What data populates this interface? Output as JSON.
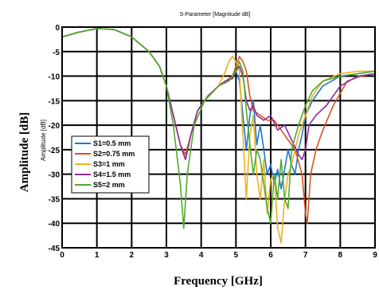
{
  "chart_data": {
    "type": "line",
    "title": "S-Parameter [Magnitude dB]",
    "xlabel": "Frequency [GHz]",
    "ylabel_outer": "Amplitude [dB]",
    "ylabel_inner": "Amplitude [dB]",
    "xlim": [
      0,
      9
    ],
    "ylim": [
      -45,
      0
    ],
    "xticks": [
      "0",
      "1",
      "2",
      "3",
      "4",
      "5",
      "6",
      "7",
      "8",
      "9"
    ],
    "yticks": [
      "0",
      "-5",
      "-10",
      "-15",
      "-20",
      "-25",
      "-30",
      "-35",
      "-40",
      "-45"
    ],
    "grid": true,
    "legend_position": "bottom-left",
    "series": [
      {
        "name": "S1=0.5 mm",
        "color": "#1f77d4",
        "x": [
          0,
          0.5,
          1,
          1.5,
          2,
          2.5,
          2.8,
          3.0,
          3.2,
          3.4,
          3.55,
          3.7,
          3.9,
          4.2,
          4.5,
          4.7,
          4.9,
          5.0,
          5.1,
          5.2,
          5.3,
          5.4,
          5.5,
          5.6,
          5.7,
          5.8,
          5.9,
          6.0,
          6.1,
          6.2,
          6.3,
          6.4,
          6.5,
          6.6,
          6.7,
          6.8,
          6.9,
          7.0,
          7.2,
          7.5,
          8.0,
          8.5,
          9.0
        ],
        "y": [
          -2,
          -1,
          -0.3,
          -0.5,
          -2,
          -5,
          -8,
          -12,
          -18,
          -24,
          -27,
          -22,
          -17,
          -14,
          -12,
          -11,
          -10.5,
          -9,
          -11,
          -18,
          -25,
          -18,
          -15,
          -24,
          -20,
          -25,
          -30,
          -28,
          -32,
          -29,
          -33,
          -29,
          -25,
          -28,
          -30,
          -25,
          -22,
          -18,
          -15,
          -12,
          -10,
          -9.5,
          -9
        ]
      },
      {
        "name": "S2=0.75 mm",
        "color": "#d9541a",
        "x": [
          0,
          0.5,
          1,
          1.5,
          2,
          2.5,
          2.8,
          3.0,
          3.2,
          3.4,
          3.55,
          3.7,
          3.9,
          4.2,
          4.5,
          4.7,
          4.9,
          5.0,
          5.1,
          5.2,
          5.3,
          5.4,
          5.5,
          5.7,
          5.9,
          6.1,
          6.3,
          6.5,
          6.7,
          6.9,
          7.0,
          7.05,
          7.15,
          7.3,
          7.5,
          7.8,
          8.2,
          8.6,
          9.0
        ],
        "y": [
          -2,
          -1,
          -0.3,
          -0.5,
          -2,
          -5,
          -8,
          -12,
          -18,
          -24,
          -26,
          -22,
          -17,
          -14,
          -12,
          -11,
          -10,
          -8,
          -6,
          -7,
          -9,
          -14,
          -17,
          -18,
          -19,
          -19,
          -21,
          -23,
          -25,
          -30,
          -38,
          -40,
          -30,
          -25,
          -21,
          -16,
          -11,
          -10,
          -9.5
        ]
      },
      {
        "name": "S3=1 mm",
        "color": "#edb120",
        "x": [
          0,
          0.5,
          1,
          1.5,
          2,
          2.5,
          2.8,
          3.0,
          3.2,
          3.4,
          3.55,
          3.7,
          3.9,
          4.2,
          4.5,
          4.7,
          4.8,
          4.9,
          5.0,
          5.1,
          5.2,
          5.3,
          5.4,
          5.5,
          5.6,
          5.7,
          5.8,
          5.9,
          6.0,
          6.1,
          6.2,
          6.3,
          6.4,
          6.5,
          6.6,
          6.7,
          6.8,
          7.0,
          7.2,
          7.5,
          8.0,
          8.5,
          9.0
        ],
        "y": [
          -2,
          -1,
          -0.3,
          -0.5,
          -2,
          -5,
          -8,
          -12,
          -18,
          -24,
          -27,
          -22,
          -17,
          -14,
          -12,
          -9,
          -7,
          -6,
          -7,
          -9,
          -22,
          -35,
          -22,
          -18,
          -30,
          -35,
          -27,
          -38,
          -31,
          -30,
          -41,
          -44,
          -35,
          -30,
          -28,
          -25,
          -22,
          -18,
          -14,
          -11,
          -9.5,
          -9,
          -9
        ]
      },
      {
        "name": "S4=1.5 mm",
        "color": "#8e2c9c",
        "x": [
          0,
          0.5,
          1,
          1.5,
          2,
          2.5,
          2.8,
          3.0,
          3.2,
          3.4,
          3.55,
          3.7,
          3.9,
          4.2,
          4.5,
          4.7,
          4.9,
          5.0,
          5.1,
          5.2,
          5.3,
          5.4,
          5.5,
          5.6,
          5.8,
          6.0,
          6.2,
          6.4,
          6.6,
          6.8,
          6.9,
          7.0,
          7.1,
          7.3,
          7.6,
          8.0,
          8.5,
          9.0
        ],
        "y": [
          -2,
          -1,
          -0.3,
          -0.5,
          -2,
          -5,
          -8,
          -12,
          -18,
          -24,
          -27,
          -22,
          -17,
          -14,
          -12,
          -11,
          -10.5,
          -9,
          -8,
          -10,
          -15,
          -17,
          -16,
          -18,
          -19,
          -18,
          -21,
          -20,
          -23,
          -26,
          -27,
          -25,
          -20,
          -18,
          -16,
          -12,
          -10,
          -9.5
        ]
      },
      {
        "name": "S5=2 mm",
        "color": "#4fab2e",
        "x": [
          0,
          0.5,
          1,
          1.5,
          2,
          2.5,
          2.8,
          3.0,
          3.2,
          3.4,
          3.5,
          3.6,
          3.8,
          4.1,
          4.5,
          4.8,
          5.0,
          5.1,
          5.2,
          5.3,
          5.4,
          5.5,
          5.6,
          5.7,
          5.8,
          5.9,
          6.0,
          6.1,
          6.2,
          6.3,
          6.4,
          6.5,
          6.6,
          6.8,
          7.0,
          7.2,
          7.5,
          8.0,
          8.5,
          9.0
        ],
        "y": [
          -2,
          -1,
          -0.3,
          -0.5,
          -2,
          -5,
          -8,
          -12,
          -20,
          -32,
          -41,
          -30,
          -20,
          -15,
          -12,
          -11,
          -9,
          -7,
          -9,
          -17,
          -24,
          -30,
          -25,
          -27,
          -32,
          -37,
          -40,
          -30,
          -35,
          -27,
          -35,
          -37,
          -25,
          -20,
          -16,
          -13,
          -11,
          -10,
          -9.5,
          -9
        ]
      }
    ]
  }
}
